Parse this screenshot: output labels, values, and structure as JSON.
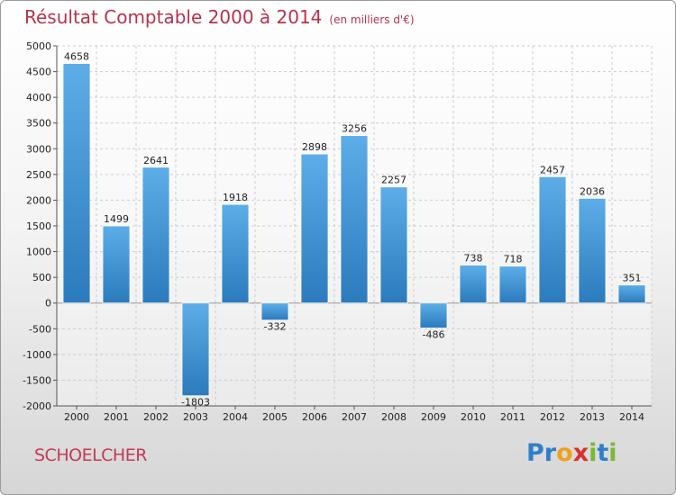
{
  "header": {
    "title": "Résultat Comptable 2000 à 2014",
    "subtitle": "(en milliers d'€)"
  },
  "footer": {
    "city": "SCHOELCHER",
    "logo_letters": [
      {
        "char": "P",
        "color": "#2f7fc8"
      },
      {
        "char": "r",
        "color": "#2f7fc8"
      },
      {
        "char": "o",
        "color": "#f0a020"
      },
      {
        "char": "x",
        "color": "#d8302f"
      },
      {
        "char": "i",
        "color": "#7bb833"
      },
      {
        "char": "t",
        "color": "#2f7fc8"
      },
      {
        "char": "i",
        "color": "#7bb833"
      }
    ]
  },
  "chart_data": {
    "type": "bar",
    "title": "Résultat Comptable 2000 à 2014",
    "subtitle": "(en milliers d'€)",
    "categories": [
      "2000",
      "2001",
      "2002",
      "2003",
      "2004",
      "2005",
      "2006",
      "2007",
      "2008",
      "2009",
      "2010",
      "2011",
      "2012",
      "2013",
      "2014"
    ],
    "values": [
      4658,
      1499,
      2641,
      -1803,
      1918,
      -332,
      2898,
      3256,
      2257,
      -486,
      738,
      718,
      2457,
      2036,
      351
    ],
    "ylim": [
      -2000,
      5000
    ],
    "yticks": [
      5000,
      4500,
      4000,
      3500,
      3000,
      2500,
      2000,
      1500,
      1000,
      500,
      0,
      -500,
      -1000,
      -1500,
      -2000
    ],
    "grid": true,
    "colors": {
      "bar_light": "#5dade8",
      "bar_dark": "#2b7bbd",
      "grid": "#cccccc",
      "axis": "#555555"
    }
  }
}
